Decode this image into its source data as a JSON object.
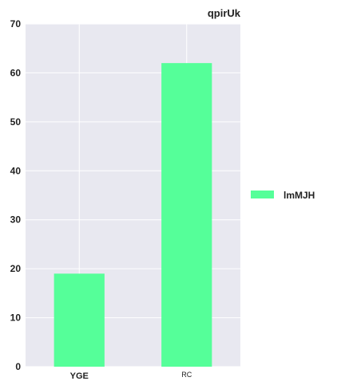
{
  "chart_data": {
    "type": "bar",
    "title": "qpirUk",
    "categories": [
      "YGE",
      "RC"
    ],
    "series": [
      {
        "name": "lmMJH",
        "values": [
          19,
          62
        ],
        "color": "#55ff99"
      }
    ],
    "ylim": [
      0,
      70
    ],
    "yticks": [
      0,
      10,
      20,
      30,
      40,
      50,
      60,
      70
    ],
    "xlabel": "",
    "ylabel": "",
    "grid": true,
    "legend_position": "right",
    "background": "#e8e8f0"
  }
}
